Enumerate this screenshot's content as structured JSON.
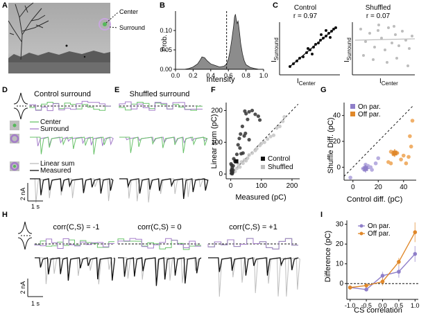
{
  "panel_labels": {
    "A": "A",
    "B": "B",
    "C": "C",
    "D": "D",
    "E": "E",
    "F": "F",
    "G": "G",
    "H": "H",
    "I": "I"
  },
  "colors": {
    "center": "#69c26a",
    "surround": "#a47cc9",
    "on_par": "#8f7fc9",
    "off_par": "#e0882a",
    "gray": "#bdbdbd",
    "black": "#111111"
  },
  "panelA": {
    "center_label": "Center",
    "surround_label": "Surround"
  },
  "panelC": {
    "control_title": "Control",
    "control_r": "r = 0.97",
    "shuffled_title": "Shuffled",
    "shuffled_r": "r = 0.07",
    "ylabel_main": "I",
    "ylabel_sub": "Surround",
    "xlabel_main": "I",
    "xlabel_sub": "Center"
  },
  "panelD": {
    "title": "Control surround",
    "legend_center": "Center",
    "legend_surround": "Surround",
    "legend_linear": "Linear sum",
    "legend_measured": "Measured",
    "scale_y": "2 nA",
    "scale_x": "1 s"
  },
  "panelE": {
    "title": "Shuffled surround"
  },
  "panelH": {
    "titles": [
      "corr(C,S) = -1",
      "corr(C,S) = 0",
      "corr(C,S) = +1"
    ],
    "scale_y": "2 nA",
    "scale_x": "1 s"
  },
  "chart_data": [
    {
      "id": "B",
      "type": "area",
      "xlabel": "Intensity",
      "ylabel": "Prob.",
      "xlim": [
        0,
        1
      ],
      "ylim": [
        0,
        0.15
      ],
      "xticks": [
        "0.0",
        "0.2",
        "0.4",
        "0.6",
        "0.8",
        "1.0"
      ],
      "yticks": [
        "0.00",
        "0.05",
        "0.10"
      ],
      "x": [
        0.1,
        0.15,
        0.2,
        0.25,
        0.28,
        0.3,
        0.33,
        0.36,
        0.4,
        0.45,
        0.5,
        0.55,
        0.58,
        0.6,
        0.62,
        0.64,
        0.66,
        0.67,
        0.68,
        0.69,
        0.7,
        0.71,
        0.72,
        0.73,
        0.74,
        0.76,
        0.78,
        0.8,
        0.85,
        0.9,
        0.95
      ],
      "y": [
        0.0,
        0.002,
        0.006,
        0.014,
        0.024,
        0.032,
        0.03,
        0.022,
        0.014,
        0.01,
        0.006,
        0.008,
        0.014,
        0.026,
        0.048,
        0.078,
        0.112,
        0.135,
        0.142,
        0.128,
        0.118,
        0.124,
        0.108,
        0.088,
        0.066,
        0.04,
        0.022,
        0.012,
        0.005,
        0.002,
        0.0
      ],
      "dashed_x": 0.58
    },
    {
      "id": "F",
      "type": "scatter",
      "xlabel": "Measured (pC)",
      "ylabel": "Linear sum (pC)",
      "xlim": [
        -15,
        225
      ],
      "ylim": [
        -15,
        225
      ],
      "xticks": [
        0,
        100,
        200
      ],
      "yticks": [
        0,
        100,
        200
      ],
      "legend": [
        "Control",
        "Shuffled"
      ],
      "series": [
        {
          "name": "Control",
          "points": [
            [
              2,
              2
            ],
            [
              4,
              8
            ],
            [
              6,
              5
            ],
            [
              3,
              14
            ],
            [
              5,
              20
            ],
            [
              1,
              32
            ],
            [
              3,
              28
            ],
            [
              8,
              26
            ],
            [
              10,
              48
            ],
            [
              14,
              40
            ],
            [
              20,
              62
            ],
            [
              24,
              92
            ],
            [
              30,
              82
            ],
            [
              34,
              64
            ],
            [
              40,
              66
            ],
            [
              28,
              112
            ],
            [
              32,
              126
            ],
            [
              44,
              120
            ],
            [
              48,
              128
            ],
            [
              60,
              108
            ],
            [
              55,
              172
            ],
            [
              50,
              190
            ],
            [
              60,
              196
            ],
            [
              70,
              200
            ],
            [
              80,
              188
            ],
            [
              90,
              182
            ],
            [
              95,
              170
            ],
            [
              46,
              198
            ],
            [
              38,
              150
            ],
            [
              4,
              4
            ],
            [
              5,
              1
            ],
            [
              2,
              10
            ],
            [
              7,
              12
            ]
          ]
        },
        {
          "name": "Shuffled",
          "points": [
            [
              3,
              2
            ],
            [
              6,
              6
            ],
            [
              10,
              12
            ],
            [
              14,
              8
            ],
            [
              20,
              18
            ],
            [
              30,
              22
            ],
            [
              40,
              34
            ],
            [
              50,
              42
            ],
            [
              60,
              60
            ],
            [
              70,
              66
            ],
            [
              85,
              80
            ],
            [
              100,
              96
            ],
            [
              110,
              100
            ],
            [
              120,
              110
            ],
            [
              130,
              118
            ],
            [
              140,
              122
            ],
            [
              150,
              145
            ],
            [
              160,
              150
            ],
            [
              170,
              166
            ],
            [
              175,
              180
            ],
            [
              95,
              90
            ],
            [
              80,
              74
            ],
            [
              45,
              44
            ],
            [
              55,
              50
            ],
            [
              35,
              38
            ],
            [
              25,
              30
            ]
          ]
        }
      ]
    },
    {
      "id": "G",
      "type": "scatter",
      "xlabel": "Control diff. (pC)",
      "ylabel": "Shuffle Diff. (pC)",
      "xlim": [
        -7,
        50
      ],
      "ylim": [
        -10,
        50
      ],
      "xticks": [
        0,
        20,
        40
      ],
      "yticks": [
        0,
        20,
        40
      ],
      "legend": [
        "On par.",
        "Off par."
      ],
      "series": [
        {
          "name": "On par.",
          "points": [
            [
              -2,
              -8
            ],
            [
              8,
              -1
            ],
            [
              10,
              2
            ],
            [
              12,
              1
            ],
            [
              15,
              -2
            ],
            [
              18,
              3
            ],
            [
              20,
              7
            ],
            [
              9,
              -2
            ],
            [
              14,
              0
            ]
          ]
        },
        {
          "name": "Off par.",
          "points": [
            [
              28,
              4
            ],
            [
              30,
              12
            ],
            [
              32,
              10
            ],
            [
              35,
              11
            ],
            [
              38,
              6
            ],
            [
              40,
              9
            ],
            [
              42,
              3
            ],
            [
              44,
              8
            ],
            [
              45,
              24
            ],
            [
              47,
              36
            ],
            [
              46,
              16
            ],
            [
              30,
              3
            ]
          ]
        }
      ],
      "means": [
        {
          "series": "On par.",
          "x": 10,
          "y": -1
        },
        {
          "series": "Off par.",
          "x": 33,
          "y": 11
        }
      ]
    },
    {
      "id": "I",
      "type": "line",
      "xlabel": "CS correlation",
      "ylabel": "Difference (pC)",
      "x": [
        -1.0,
        -0.5,
        0.0,
        0.5,
        1.0
      ],
      "xticks": [
        "-1.0",
        "-0.5",
        "0.0",
        "0.5",
        "1.0"
      ],
      "ylim": [
        -8,
        32
      ],
      "yticks": [
        0,
        10,
        20,
        30
      ],
      "legend": [
        "On par.",
        "Off par."
      ],
      "series": [
        {
          "name": "On par.",
          "values": [
            -2,
            -3,
            4,
            6,
            15
          ],
          "err": [
            1,
            1,
            2,
            3,
            4
          ]
        },
        {
          "name": "Off par.",
          "values": [
            -2,
            -1,
            1,
            11,
            26
          ],
          "err": [
            1,
            1,
            2,
            2,
            5
          ]
        }
      ]
    }
  ]
}
